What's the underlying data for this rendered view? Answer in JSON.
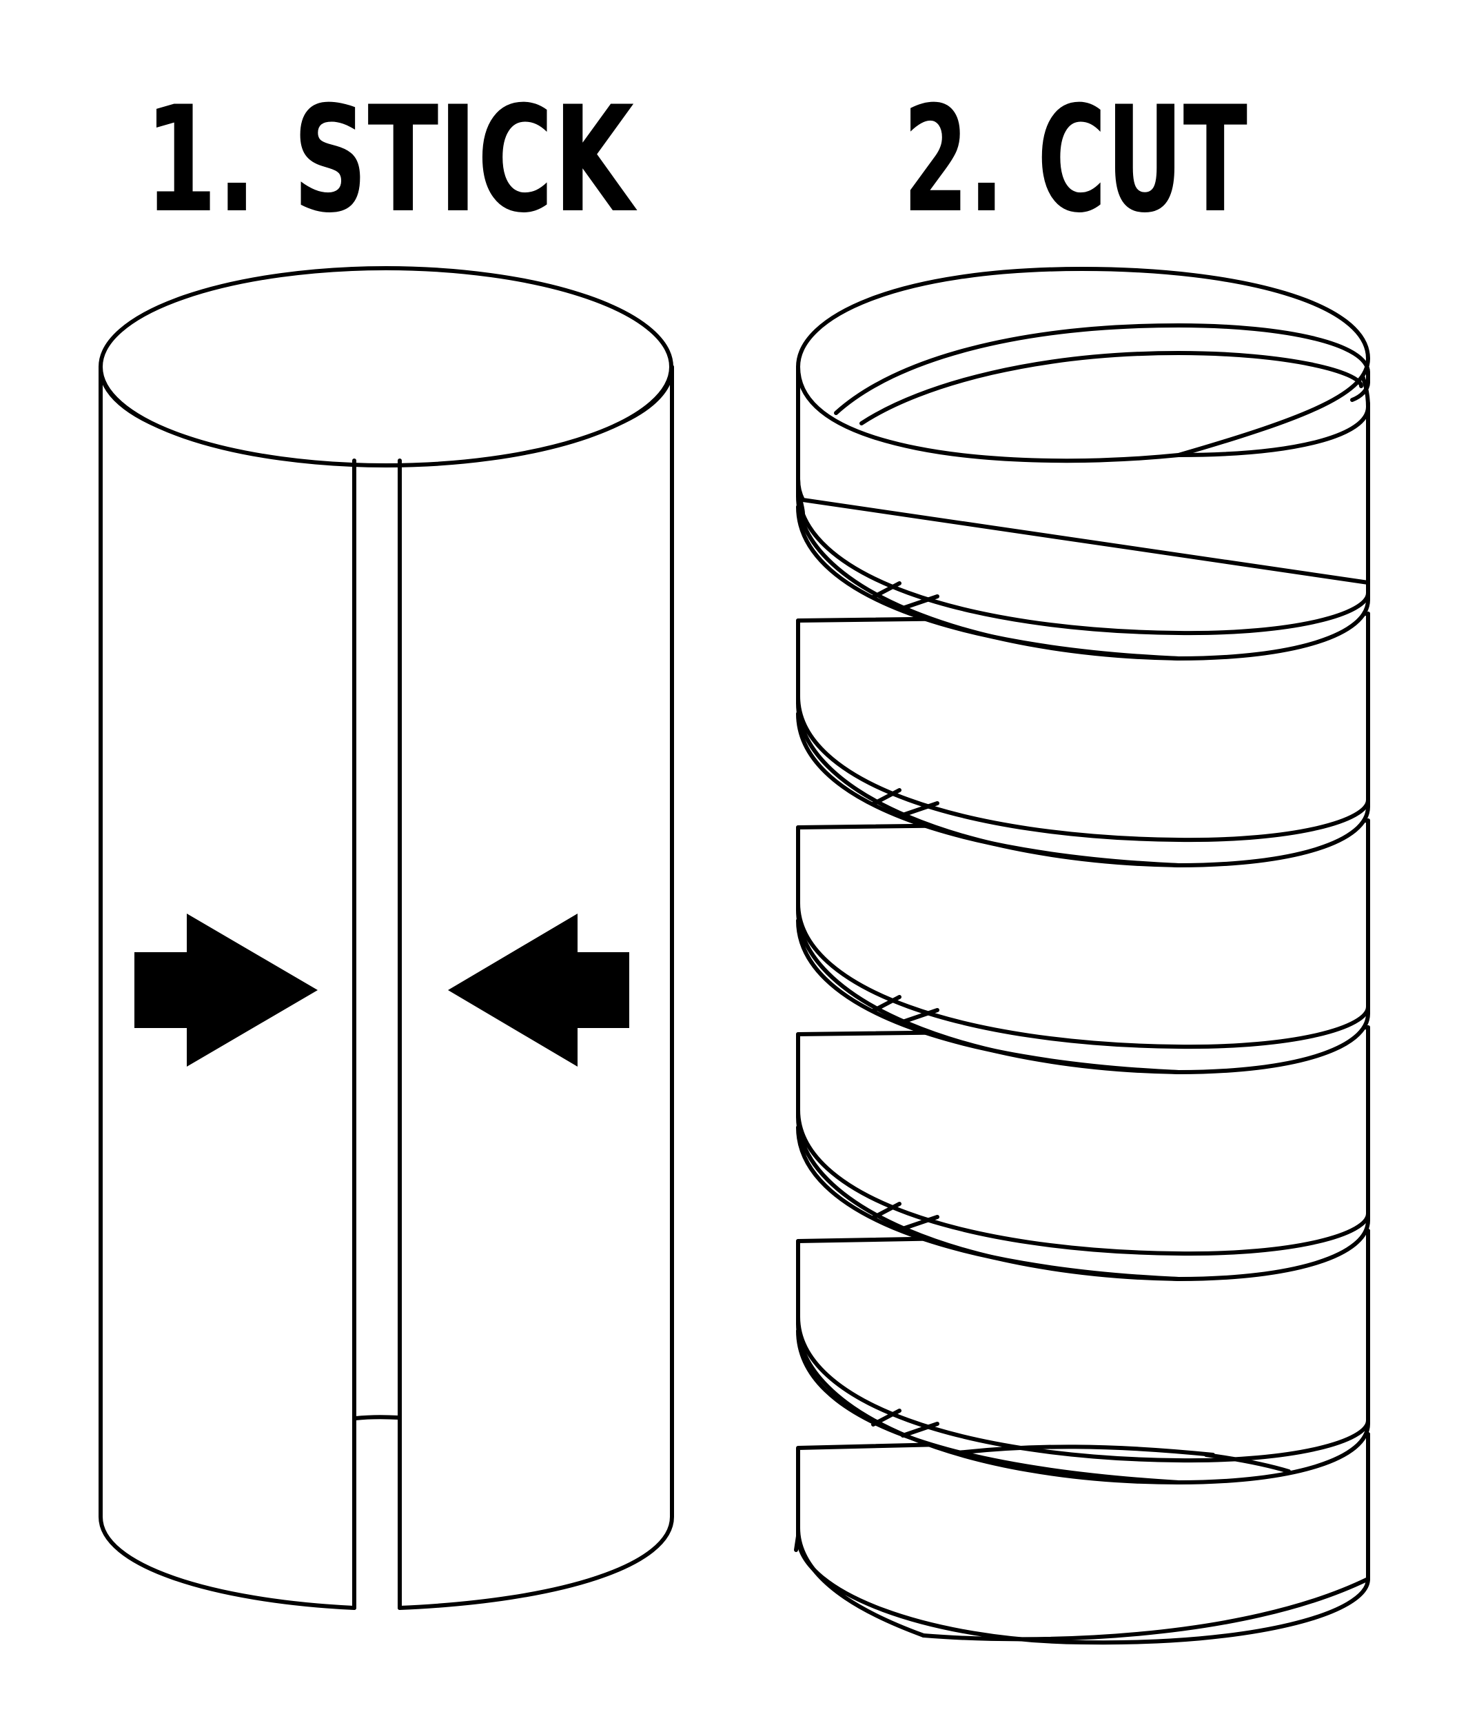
{
  "steps": [
    {
      "label": "1. STICK",
      "icon": "cylinder-with-seam-icon"
    },
    {
      "label": "2. CUT",
      "icon": "spiral-cut-cylinder-icon"
    }
  ],
  "colors": {
    "ink": "#000000",
    "paper": "#ffffff"
  }
}
